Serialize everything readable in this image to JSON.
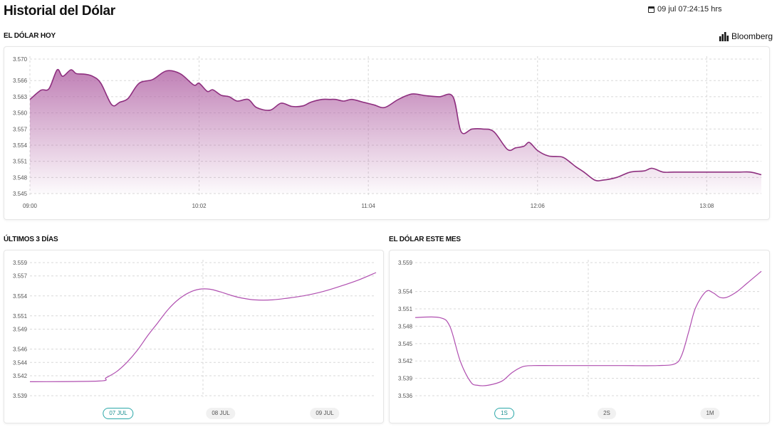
{
  "header": {
    "title": "Historial del Dólar",
    "datetime": "09 jul 07:24:15 hrs"
  },
  "source": {
    "label": "Bloomberg",
    "icon": "bloomberg-bars-icon"
  },
  "colors": {
    "today_line": "#8e2f7f",
    "today_fill": "#b56aa9",
    "line": "#b04fb0",
    "accent": "#2aa7a8",
    "grid": "#d8d8d8"
  },
  "chart_data": [
    {
      "id": "today",
      "type": "area",
      "title": "EL DÓLAR HOY",
      "x_ticks": [
        "09:00",
        "10:02",
        "11:04",
        "12:06",
        "13:08"
      ],
      "y_ticks": [
        "3.570",
        "3.566",
        "3.563",
        "3.560",
        "3.557",
        "3.554",
        "3.551",
        "3.548",
        "3.545"
      ],
      "ylim": [
        3.545,
        3.57
      ],
      "xlim": [
        0,
        268
      ],
      "x_tick_positions": [
        0,
        62,
        124,
        186,
        248
      ],
      "grid": true,
      "x": [
        0,
        4,
        7,
        10,
        12,
        15,
        17,
        20,
        23,
        26,
        30,
        33,
        36,
        40,
        45,
        50,
        55,
        60,
        62,
        65,
        67,
        70,
        73,
        76,
        80,
        83,
        88,
        92,
        96,
        100,
        103,
        107,
        110,
        112,
        115,
        118,
        122,
        126,
        130,
        135,
        140,
        145,
        150,
        155,
        158,
        162,
        166,
        170,
        175,
        178,
        181,
        183,
        186,
        190,
        195,
        198,
        200,
        203,
        207,
        210,
        215,
        220,
        225,
        228,
        232,
        236,
        240,
        245,
        250,
        255,
        260,
        264,
        268
      ],
      "values": [
        3.5625,
        3.5642,
        3.5645,
        3.568,
        3.5668,
        3.568,
        3.5673,
        3.5672,
        3.5668,
        3.5655,
        3.5615,
        3.562,
        3.5627,
        3.5655,
        3.5662,
        3.5678,
        3.5673,
        3.5652,
        3.5655,
        3.564,
        3.5643,
        3.5633,
        3.563,
        3.5622,
        3.5625,
        3.561,
        3.5605,
        3.5618,
        3.5612,
        3.5613,
        3.562,
        3.5625,
        3.5625,
        3.5625,
        3.5622,
        3.5625,
        3.562,
        3.5615,
        3.561,
        3.5625,
        3.5635,
        3.5632,
        3.563,
        3.563,
        3.5565,
        3.557,
        3.557,
        3.5565,
        3.5532,
        3.5535,
        3.5538,
        3.5545,
        3.553,
        3.552,
        3.5518,
        3.5508,
        3.55,
        3.549,
        3.5475,
        3.5475,
        3.548,
        3.549,
        3.5492,
        3.5497,
        3.549,
        3.549,
        3.549,
        3.549,
        3.549,
        3.549,
        3.549,
        3.549,
        3.5485
      ]
    },
    {
      "id": "three_days",
      "type": "line",
      "title": "ÚLTIMOS 3 DÍAS",
      "categories": [
        "07 JUL",
        "08 JUL",
        "09 JUL"
      ],
      "active_category": "07 JUL",
      "y_ticks": [
        "3.559",
        "3.557",
        "3.554",
        "3.551",
        "3.549",
        "3.546",
        "3.544",
        "3.542",
        "3.539"
      ],
      "ylim": [
        3.539,
        3.559
      ],
      "xlim": [
        0,
        100
      ],
      "grid": true,
      "x": [
        0,
        20,
        22,
        25,
        28,
        31,
        34,
        37,
        40,
        43,
        46,
        49,
        52,
        55,
        58,
        61,
        65,
        70,
        75,
        80,
        85,
        90,
        95,
        100
      ],
      "values": [
        3.5411,
        3.5412,
        3.5417,
        3.5426,
        3.544,
        3.5458,
        3.548,
        3.55,
        3.552,
        3.5535,
        3.5545,
        3.555,
        3.555,
        3.5546,
        3.5541,
        3.5537,
        3.5534,
        3.5534,
        3.5537,
        3.5541,
        3.5547,
        3.5555,
        3.5564,
        3.5575
      ]
    },
    {
      "id": "month",
      "type": "line",
      "title": "EL DÓLAR ESTE MES",
      "categories": [
        "1S",
        "2S",
        "1M"
      ],
      "active_category": "1S",
      "y_ticks": [
        "3.559",
        "3.554",
        "3.551",
        "3.548",
        "3.545",
        "3.542",
        "3.539",
        "3.536"
      ],
      "ylim": [
        3.536,
        3.559
      ],
      "xlim": [
        0,
        100
      ],
      "grid": true,
      "x": [
        0,
        7,
        10,
        13,
        16,
        18,
        21,
        25,
        28,
        31,
        34,
        40,
        50,
        60,
        70,
        75,
        77,
        79,
        81,
        84,
        86,
        88,
        90,
        93,
        96,
        100
      ],
      "values": [
        3.5495,
        3.5495,
        3.548,
        3.542,
        3.5384,
        3.5378,
        3.5378,
        3.5385,
        3.54,
        3.541,
        3.5412,
        3.5412,
        3.5412,
        3.5412,
        3.5412,
        3.5415,
        3.543,
        3.547,
        3.5512,
        3.554,
        3.5538,
        3.553,
        3.553,
        3.554,
        3.5555,
        3.5575
      ]
    }
  ]
}
